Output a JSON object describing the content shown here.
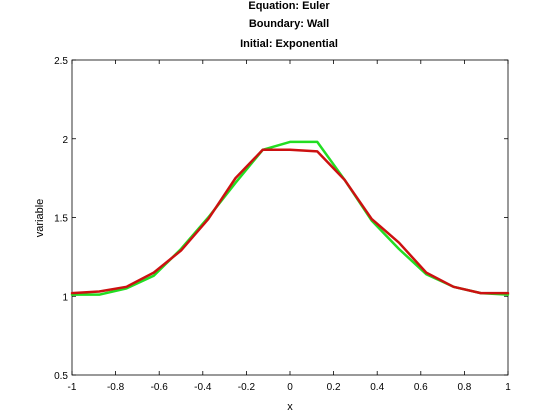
{
  "chart_data": {
    "type": "line",
    "title_lines": [
      "Equation: Euler",
      "Boundary: Wall",
      "Initial: Exponential"
    ],
    "xlabel": "x",
    "ylabel": "variable",
    "xlim": [
      -1,
      1
    ],
    "ylim": [
      0.5,
      2.5
    ],
    "x_ticks": [
      "-1",
      "-0.8",
      "-0.6",
      "-0.4",
      "-0.2",
      "0",
      "0.2",
      "0.4",
      "0.6",
      "0.8",
      "1"
    ],
    "y_ticks": [
      "0.5",
      "1",
      "1.5",
      "2",
      "2.5"
    ],
    "grid": false,
    "series": [
      {
        "color": "#22dd22",
        "x": [
          -1,
          -0.875,
          -0.75,
          -0.625,
          -0.5,
          -0.375,
          -0.25,
          -0.125,
          0,
          0.125,
          0.25,
          0.375,
          0.5,
          0.625,
          0.75,
          0.875,
          1
        ],
        "y": [
          1.01,
          1.01,
          1.05,
          1.13,
          1.3,
          1.5,
          1.72,
          1.93,
          1.98,
          1.98,
          1.74,
          1.48,
          1.3,
          1.14,
          1.06,
          1.02,
          1.01
        ]
      },
      {
        "color": "#cc1111",
        "x": [
          -1,
          -0.875,
          -0.75,
          -0.625,
          -0.5,
          -0.375,
          -0.25,
          -0.125,
          0,
          0.125,
          0.25,
          0.375,
          0.5,
          0.625,
          0.75,
          0.875,
          1
        ],
        "y": [
          1.02,
          1.03,
          1.06,
          1.15,
          1.29,
          1.49,
          1.75,
          1.93,
          1.93,
          1.92,
          1.74,
          1.49,
          1.34,
          1.15,
          1.06,
          1.02,
          1.02
        ]
      }
    ]
  }
}
